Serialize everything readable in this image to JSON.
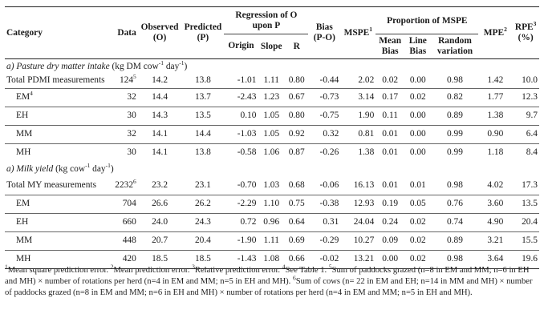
{
  "header": {
    "category": "Category",
    "data": "Data",
    "observed": "Observed (O)",
    "predicted": "Predicted (P)",
    "regression": "Regression of O upon P",
    "origin": "Origin",
    "slope": "Slope",
    "r": "R",
    "bias": "Bias (P-O)",
    "mspe": "MSPE",
    "mspe_sup": "1",
    "proportion": "Proportion of MSPE",
    "mean_bias": "Mean Bias",
    "line_bias": "Line Bias",
    "random_variation": "Random variation",
    "mpe": "MPE",
    "mpe_sup": "2",
    "rpe": "RPE",
    "rpe_sup": "3",
    "rpe_unit": "(%)"
  },
  "sections": [
    {
      "title": "a) Pasture dry matter intake",
      "unit": "(kg DM cow",
      "unit_sup": "-1",
      "unit_mid": " day",
      "unit_sup2": "-1",
      "unit_end": ")",
      "rows": [
        {
          "label": "Total PDMI measurements",
          "sup": "",
          "data": "124",
          "data_sup": "5",
          "observed": "14.2",
          "predicted": "13.8",
          "origin": "-1.01",
          "slope": "1.11",
          "r": "0.80",
          "bias": "-0.44",
          "mspe": "2.02",
          "mean_bias": "0.02",
          "line_bias": "0.00",
          "random": "0.98",
          "mpe": "1.42",
          "rpe": "10.0"
        },
        {
          "label": "EM",
          "sup": "4",
          "data": "32",
          "data_sup": "",
          "observed": "14.4",
          "predicted": "13.7",
          "origin": "-2.43",
          "slope": "1.23",
          "r": "0.67",
          "bias": "-0.73",
          "mspe": "3.14",
          "mean_bias": "0.17",
          "line_bias": "0.02",
          "random": "0.82",
          "mpe": "1.77",
          "rpe": "12.3"
        },
        {
          "label": "EH",
          "sup": "",
          "data": "30",
          "data_sup": "",
          "observed": "14.3",
          "predicted": "13.5",
          "origin": "0.10",
          "slope": "1.05",
          "r": "0.80",
          "bias": "-0.75",
          "mspe": "1.90",
          "mean_bias": "0.11",
          "line_bias": "0.00",
          "random": "0.89",
          "mpe": "1.38",
          "rpe": "9.7"
        },
        {
          "label": "MM",
          "sup": "",
          "data": "32",
          "data_sup": "",
          "observed": "14.1",
          "predicted": "14.4",
          "origin": "-1.03",
          "slope": "1.05",
          "r": "0.92",
          "bias": "0.32",
          "mspe": "0.81",
          "mean_bias": "0.01",
          "line_bias": "0.00",
          "random": "0.99",
          "mpe": "0.90",
          "rpe": "6.4"
        },
        {
          "label": "MH",
          "sup": "",
          "data": "30",
          "data_sup": "",
          "observed": "14.1",
          "predicted": "13.8",
          "origin": "-0.58",
          "slope": "1.06",
          "r": "0.87",
          "bias": "-0.26",
          "mspe": "1.38",
          "mean_bias": "0.01",
          "line_bias": "0.00",
          "random": "0.99",
          "mpe": "1.18",
          "rpe": "8.4"
        }
      ]
    },
    {
      "title": "a) Milk yield",
      "unit": "(kg cow",
      "unit_sup": "-1",
      "unit_mid": " day",
      "unit_sup2": "-1",
      "unit_end": ")",
      "rows": [
        {
          "label": "Total MY measurements",
          "sup": "",
          "data": "2232",
          "data_sup": "6",
          "observed": "23.2",
          "predicted": "23.1",
          "origin": "-0.70",
          "slope": "1.03",
          "r": "0.68",
          "bias": "-0.06",
          "mspe": "16.13",
          "mean_bias": "0.01",
          "line_bias": "0.01",
          "random": "0.98",
          "mpe": "4.02",
          "rpe": "17.3"
        },
        {
          "label": "EM",
          "sup": "",
          "data": "704",
          "data_sup": "",
          "observed": "26.6",
          "predicted": "26.2",
          "origin": "-2.29",
          "slope": "1.10",
          "r": "0.75",
          "bias": "-0.38",
          "mspe": "12.93",
          "mean_bias": "0.19",
          "line_bias": "0.05",
          "random": "0.76",
          "mpe": "3.60",
          "rpe": "13.5"
        },
        {
          "label": "EH",
          "sup": "",
          "data": "660",
          "data_sup": "",
          "observed": "24.0",
          "predicted": "24.3",
          "origin": "0.72",
          "slope": "0.96",
          "r": "0.64",
          "bias": "0.31",
          "mspe": "24.04",
          "mean_bias": "0.24",
          "line_bias": "0.02",
          "random": "0.74",
          "mpe": "4.90",
          "rpe": "20.4"
        },
        {
          "label": "MM",
          "sup": "",
          "data": "448",
          "data_sup": "",
          "observed": "20.7",
          "predicted": "20.4",
          "origin": "-1.90",
          "slope": "1.11",
          "r": "0.69",
          "bias": "-0.29",
          "mspe": "10.27",
          "mean_bias": "0.09",
          "line_bias": "0.02",
          "random": "0.89",
          "mpe": "3.21",
          "rpe": "15.5"
        },
        {
          "label": "MH",
          "sup": "",
          "data": "420",
          "data_sup": "",
          "observed": "18.5",
          "predicted": "18.5",
          "origin": "-1.43",
          "slope": "1.08",
          "r": "0.66",
          "bias": "-0.02",
          "mspe": "13.21",
          "mean_bias": "0.00",
          "line_bias": "0.02",
          "random": "0.98",
          "mpe": "3.64",
          "rpe": "19.6"
        }
      ]
    }
  ],
  "footnotes": {
    "s1": "1",
    "t1": "Mean square prediction error. ",
    "s2": "2",
    "t2": "Mean prediction error. ",
    "s3": "3",
    "t3": "Relative prediction error. ",
    "s4": "4",
    "t4": "See Table 1. ",
    "s5": "5",
    "t5": "Sum of paddocks grazed (n=8 in EM and MM; n=6 in EH and MH) × number of rotations per herd (n=4 in EM and MM; n=5 in EH and MH). ",
    "s6": "6",
    "t6": "Sum of cows (n= 22 in EM and EH; n=14 in MM and MH) × number of paddocks grazed (n=8 in EM and MM; n=6 in EH and MH) × number of rotations per herd (n=4 in EM and MM; n=5 in EH and MH)."
  }
}
